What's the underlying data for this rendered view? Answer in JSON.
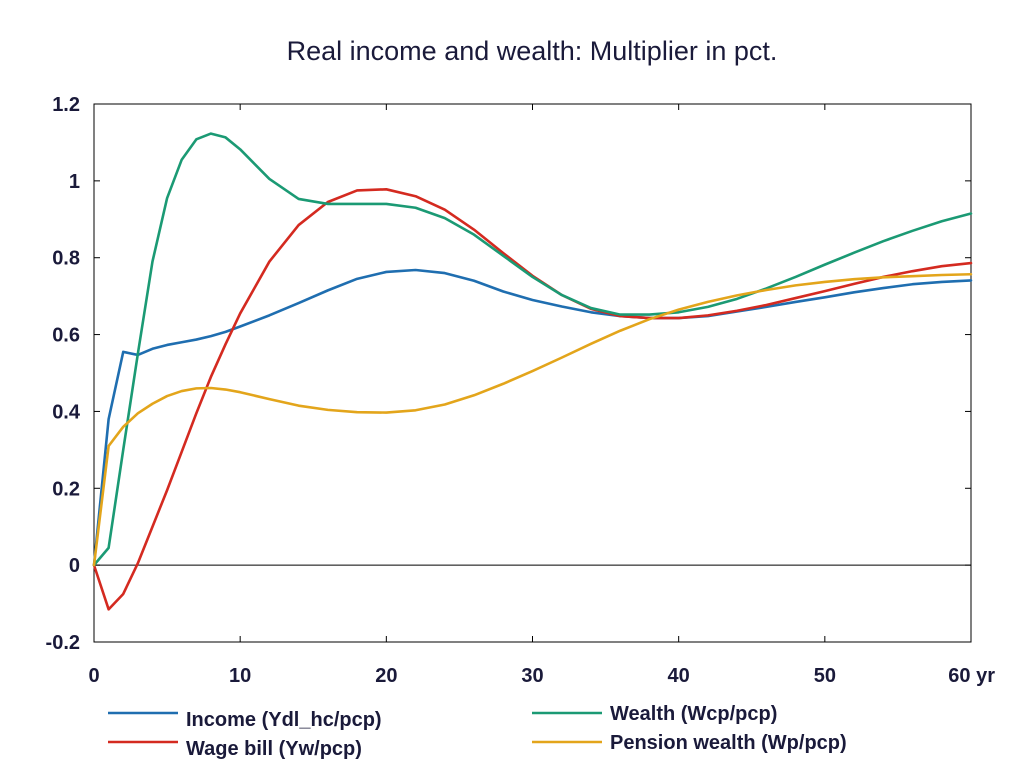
{
  "chart_data": {
    "type": "line",
    "title": "Real income and wealth: Multiplier in pct.",
    "xlabel": "",
    "ylabel": "",
    "xlim": [
      0,
      60
    ],
    "ylim": [
      -0.2,
      1.2
    ],
    "x_ticks": [
      {
        "value": 0,
        "label": "0"
      },
      {
        "value": 10,
        "label": "10"
      },
      {
        "value": 20,
        "label": "20"
      },
      {
        "value": 30,
        "label": "30"
      },
      {
        "value": 40,
        "label": "40"
      },
      {
        "value": 50,
        "label": "50"
      },
      {
        "value": 60,
        "label": "60 yr"
      }
    ],
    "y_ticks": [
      {
        "value": 1.2,
        "label": "1.2"
      },
      {
        "value": 1.0,
        "label": "1"
      },
      {
        "value": 0.8,
        "label": "0.8"
      },
      {
        "value": 0.6,
        "label": "0.6"
      },
      {
        "value": 0.4,
        "label": "0.4"
      },
      {
        "value": 0.2,
        "label": "0.2"
      },
      {
        "value": 0.0,
        "label": "0"
      },
      {
        "value": -0.2,
        "label": "-0.2"
      }
    ],
    "grid": false,
    "zero_line": true,
    "legend_position": "bottom",
    "series": [
      {
        "name": "Income (Ydl_hc/pcp)",
        "color": "#1f6eb0",
        "x": [
          0,
          1,
          2,
          3,
          4,
          5,
          6,
          7,
          8,
          9,
          10,
          12,
          14,
          16,
          18,
          20,
          22,
          24,
          26,
          28,
          30,
          32,
          34,
          36,
          38,
          40,
          42,
          44,
          46,
          48,
          50,
          52,
          54,
          56,
          58,
          60
        ],
        "y": [
          0,
          0.38,
          0.555,
          0.547,
          0.563,
          0.573,
          0.58,
          0.587,
          0.596,
          0.607,
          0.621,
          0.65,
          0.682,
          0.715,
          0.745,
          0.763,
          0.768,
          0.76,
          0.74,
          0.712,
          0.69,
          0.673,
          0.658,
          0.648,
          0.643,
          0.643,
          0.648,
          0.66,
          0.672,
          0.685,
          0.697,
          0.71,
          0.721,
          0.731,
          0.737,
          0.741
        ]
      },
      {
        "name": "Wage bill (Yw/pcp)",
        "color": "#d42a20",
        "x": [
          0,
          1,
          2,
          3,
          4,
          5,
          6,
          7,
          8,
          9,
          10,
          12,
          14,
          16,
          18,
          20,
          22,
          24,
          26,
          28,
          30,
          32,
          34,
          36,
          38,
          40,
          42,
          44,
          46,
          48,
          50,
          52,
          54,
          56,
          58,
          60
        ],
        "y": [
          0,
          -0.115,
          -0.075,
          0.005,
          0.1,
          0.195,
          0.295,
          0.395,
          0.49,
          0.575,
          0.655,
          0.79,
          0.885,
          0.945,
          0.975,
          0.978,
          0.96,
          0.925,
          0.873,
          0.812,
          0.753,
          0.703,
          0.667,
          0.648,
          0.643,
          0.643,
          0.65,
          0.662,
          0.677,
          0.695,
          0.713,
          0.732,
          0.75,
          0.765,
          0.778,
          0.786
        ]
      },
      {
        "name": "Wealth (Wcp/pcp)",
        "color": "#1b9a74",
        "x": [
          0,
          1,
          2,
          3,
          4,
          5,
          6,
          7,
          8,
          9,
          10,
          12,
          14,
          16,
          18,
          20,
          22,
          24,
          26,
          28,
          30,
          32,
          34,
          36,
          38,
          40,
          42,
          44,
          46,
          48,
          50,
          52,
          54,
          56,
          58,
          60
        ],
        "y": [
          0,
          0.045,
          0.3,
          0.55,
          0.79,
          0.955,
          1.055,
          1.108,
          1.123,
          1.113,
          1.082,
          1.005,
          0.953,
          0.94,
          0.94,
          0.94,
          0.93,
          0.903,
          0.86,
          0.805,
          0.75,
          0.703,
          0.669,
          0.652,
          0.652,
          0.658,
          0.672,
          0.693,
          0.72,
          0.75,
          0.782,
          0.813,
          0.843,
          0.87,
          0.895,
          0.915
        ]
      },
      {
        "name": "Pension wealth (Wp/pcp)",
        "color": "#e3a51b",
        "x": [
          0,
          1,
          2,
          3,
          4,
          5,
          6,
          7,
          8,
          9,
          10,
          12,
          14,
          16,
          18,
          20,
          22,
          24,
          26,
          28,
          30,
          32,
          34,
          36,
          38,
          40,
          42,
          44,
          46,
          48,
          50,
          52,
          54,
          56,
          58,
          60
        ],
        "y": [
          0,
          0.31,
          0.36,
          0.395,
          0.42,
          0.44,
          0.453,
          0.46,
          0.461,
          0.457,
          0.45,
          0.432,
          0.415,
          0.404,
          0.398,
          0.397,
          0.403,
          0.418,
          0.442,
          0.472,
          0.505,
          0.54,
          0.576,
          0.61,
          0.64,
          0.665,
          0.685,
          0.702,
          0.716,
          0.728,
          0.737,
          0.744,
          0.749,
          0.752,
          0.755,
          0.757
        ]
      }
    ],
    "legend_rows": [
      [
        0,
        2
      ],
      [
        1,
        3
      ]
    ]
  }
}
